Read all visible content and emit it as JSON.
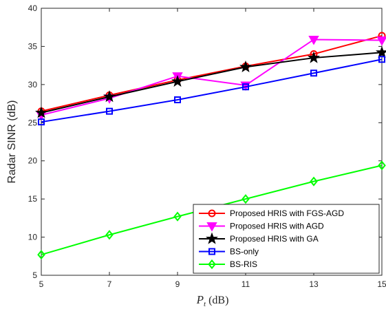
{
  "chart_data": {
    "type": "line",
    "x": [
      5,
      7,
      9,
      11,
      13,
      15
    ],
    "xlabel": {
      "symbol": "P",
      "subscript": "t",
      "unit": "(dB)"
    },
    "ylabel": "Radar SINR (dB)",
    "xlim": [
      5,
      15
    ],
    "ylim": [
      5,
      40
    ],
    "xticks": [
      "5",
      "7",
      "9",
      "11",
      "13",
      "15"
    ],
    "yticks": [
      "5",
      "10",
      "15",
      "20",
      "25",
      "30",
      "35",
      "40"
    ],
    "grid": false,
    "legend_position": "bottom-right",
    "series": [
      {
        "name": "Proposed HRIS with FGS-AGD",
        "color": "#ff0000",
        "marker": "circle",
        "values": [
          26.5,
          28.6,
          30.6,
          32.4,
          34.0,
          36.4
        ]
      },
      {
        "name": "Proposed HRIS with AGD",
        "color": "#ff00ff",
        "marker": "triangle-down",
        "values": [
          26.0,
          28.2,
          31.1,
          29.9,
          35.9,
          35.8
        ]
      },
      {
        "name": "Proposed HRIS with GA",
        "color": "#000000",
        "marker": "star",
        "values": [
          26.3,
          28.4,
          30.4,
          32.3,
          33.5,
          34.2
        ]
      },
      {
        "name": "BS-only",
        "color": "#0000ff",
        "marker": "square",
        "values": [
          25.1,
          26.5,
          28.0,
          29.7,
          31.5,
          33.3
        ]
      },
      {
        "name": "BS-RIS",
        "color": "#00ff00",
        "marker": "diamond",
        "values": [
          7.7,
          10.3,
          12.7,
          15.0,
          17.3,
          19.4
        ]
      }
    ]
  }
}
